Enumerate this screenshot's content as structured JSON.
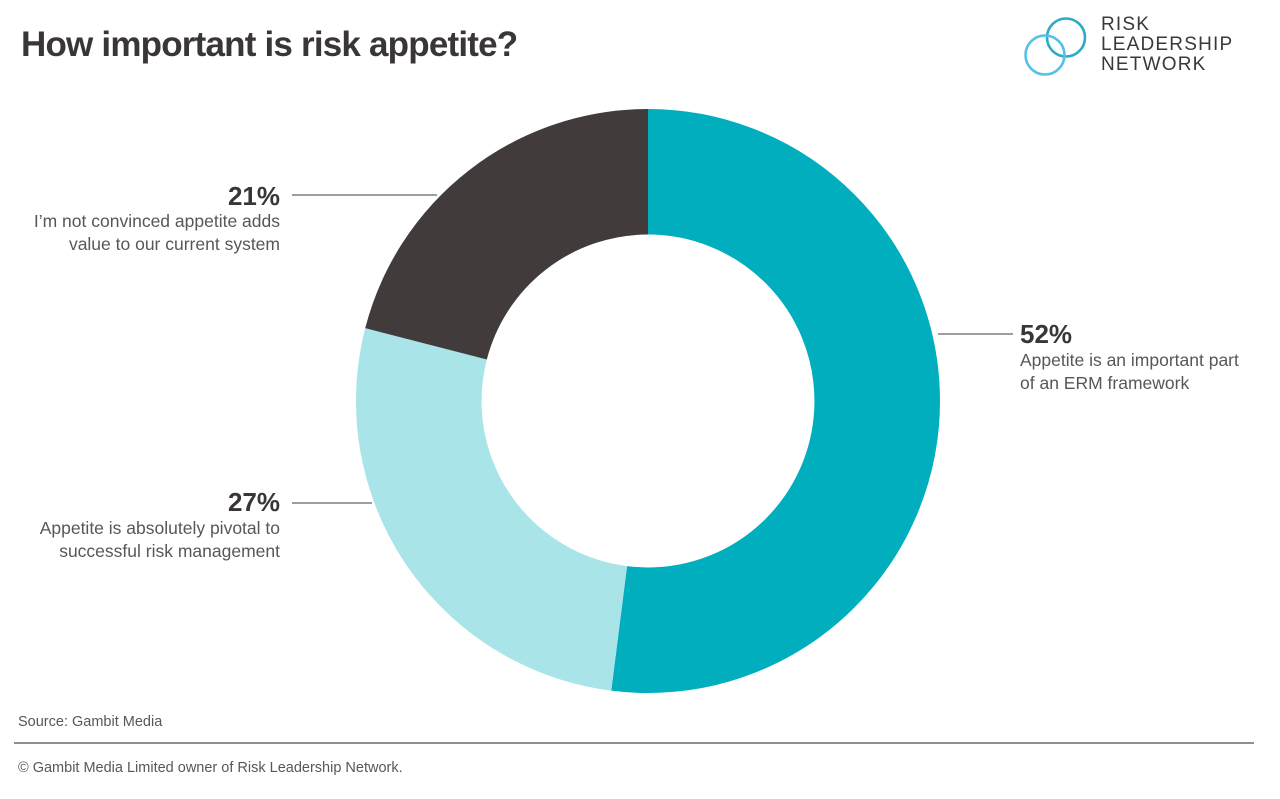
{
  "header": {
    "title": "How important is risk appetite?"
  },
  "logo": {
    "lines": [
      "RISK",
      "LEADERSHIP",
      "NETWORK"
    ],
    "circle_colors": {
      "teal": "#2BACC4",
      "blue": "#55C1E9"
    }
  },
  "chart_data": {
    "type": "pie",
    "subtype": "donut",
    "title": "How important is risk appetite?",
    "start_angle_deg": 0,
    "direction": "clockwise",
    "inner_radius_ratio": 0.57,
    "segments": [
      {
        "label": "Appetite is an important part of an ERM framework",
        "value_pct": 52,
        "color": "#00AEBE"
      },
      {
        "label": "Appetite is absolutely pivotal to successful risk management",
        "value_pct": 27,
        "color": "#A8E4E8"
      },
      {
        "label": "I’m not convinced appetite adds value to our current system",
        "value_pct": 21,
        "color": "#413B3B"
      }
    ]
  },
  "callouts": {
    "right": {
      "pct": "52%",
      "text": "Appetite is an important part\nof an ERM framework"
    },
    "top_left": {
      "pct": "21%",
      "text": "I’m not convinced appetite adds\nvalue to our current system"
    },
    "bottom_left": {
      "pct": "27%",
      "text": "Appetite is absolutely pivotal to\nsuccessful risk management"
    }
  },
  "footer": {
    "source": "Source: Gambit Media",
    "copyright": "© Gambit Media Limited owner of Risk Leadership Network."
  },
  "colors": {
    "accent_teal": "#00AEBE",
    "accent_light_teal": "#A8E4E8",
    "dark_segment": "#413B3B",
    "text_dark": "#3A3636",
    "text_gray": "#5B5656",
    "leader_line": "#9E9E9E"
  }
}
